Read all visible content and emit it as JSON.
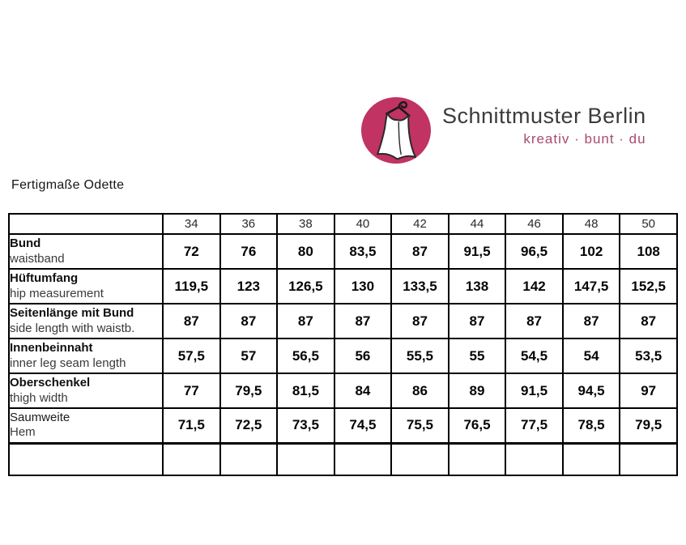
{
  "logo": {
    "brand": "Schnittmuster Berlin",
    "tagline": "kreativ · bunt · du",
    "brand_color": "#3b3b3d",
    "tagline_color": "#a94a70",
    "badge_color": "#c13363",
    "icon": "dress-on-hanger"
  },
  "page_title": "Fertigmaße Odette",
  "table": {
    "size_headers": [
      "34",
      "36",
      "38",
      "40",
      "42",
      "44",
      "46",
      "48",
      "50"
    ],
    "rows": [
      {
        "label_de": "Bund",
        "label_en": "waistband",
        "bold": true,
        "values": [
          "72",
          "76",
          "80",
          "83,5",
          "87",
          "91,5",
          "96,5",
          "102",
          "108"
        ]
      },
      {
        "label_de": "Hüftumfang",
        "label_en": "hip measurement",
        "bold": true,
        "values": [
          "119,5",
          "123",
          "126,5",
          "130",
          "133,5",
          "138",
          "142",
          "147,5",
          "152,5"
        ]
      },
      {
        "label_de": "Seitenlänge mit Bund",
        "label_en": "side length with waistb.",
        "bold": true,
        "values": [
          "87",
          "87",
          "87",
          "87",
          "87",
          "87",
          "87",
          "87",
          "87"
        ]
      },
      {
        "label_de": "Innenbeinnaht",
        "label_en": "inner leg seam length",
        "bold": true,
        "values": [
          "57,5",
          "57",
          "56,5",
          "56",
          "55,5",
          "55",
          "54,5",
          "54",
          "53,5"
        ]
      },
      {
        "label_de": "Oberschenkel",
        "label_en": "thigh width",
        "bold": true,
        "values": [
          "77",
          "79,5",
          "81,5",
          "84",
          "86",
          "89",
          "91,5",
          "94,5",
          "97"
        ]
      },
      {
        "label_de": "Saumweite",
        "label_en": "Hem",
        "bold": false,
        "values": [
          "71,5",
          "72,5",
          "73,5",
          "74,5",
          "75,5",
          "76,5",
          "77,5",
          "78,5",
          "79,5"
        ]
      }
    ],
    "has_trailing_empty_row": true
  }
}
